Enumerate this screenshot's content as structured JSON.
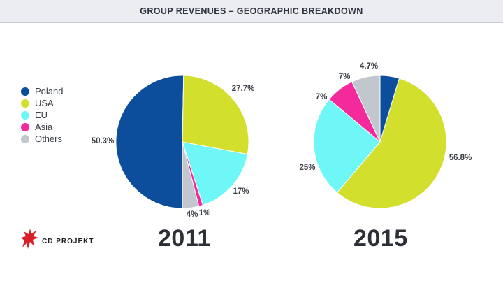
{
  "header": {
    "title": "GROUP REVENUES – GEOGRAPHIC BREAKDOWN"
  },
  "legend": [
    {
      "label": "Poland",
      "color": "#0d4e9c"
    },
    {
      "label": "USA",
      "color": "#d2df2c"
    },
    {
      "label": "EU",
      "color": "#6ff7f7"
    },
    {
      "label": "Asia",
      "color": "#f42a9c"
    },
    {
      "label": "Others",
      "color": "#c2c6cd"
    }
  ],
  "chart_data": [
    {
      "type": "pie",
      "title": "2011",
      "categories": [
        "Poland",
        "USA",
        "EU",
        "Asia",
        "Others"
      ],
      "values": [
        50.3,
        27.7,
        17,
        1,
        4
      ],
      "labels": [
        "50.3%",
        "27.7%",
        "17%",
        "1%",
        "4%"
      ],
      "colors": [
        "#0d4e9c",
        "#d2df2c",
        "#6ff7f7",
        "#f42a9c",
        "#c2c6cd"
      ]
    },
    {
      "type": "pie",
      "title": "2015",
      "categories": [
        "Poland",
        "USA",
        "EU",
        "Asia",
        "Others"
      ],
      "values": [
        4.7,
        56.8,
        25,
        7,
        7
      ],
      "labels": [
        "4.7%",
        "56.8%",
        "25%",
        "7%",
        "7%"
      ],
      "colors": [
        "#0d4e9c",
        "#d2df2c",
        "#6ff7f7",
        "#f42a9c",
        "#c2c6cd"
      ]
    }
  ],
  "logo": {
    "text": "CD PROJEKT",
    "color": "#d8202a"
  }
}
